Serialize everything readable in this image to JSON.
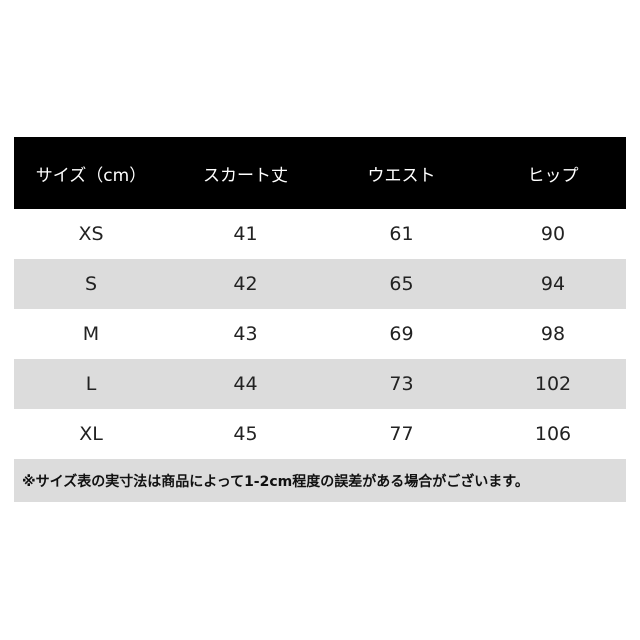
{
  "table": {
    "header": [
      "サイズ（cm）",
      "スカート丈",
      "ウエスト",
      "ヒップ"
    ],
    "rows": [
      [
        "XS",
        "41",
        "61",
        "90"
      ],
      [
        "S",
        "42",
        "65",
        "94"
      ],
      [
        "M",
        "43",
        "69",
        "98"
      ],
      [
        "L",
        "44",
        "73",
        "102"
      ],
      [
        "XL",
        "45",
        "77",
        "106"
      ]
    ],
    "note": "※サイズ表の実寸法は商品によって1-2cm程度の誤差がある場合がございます。"
  }
}
